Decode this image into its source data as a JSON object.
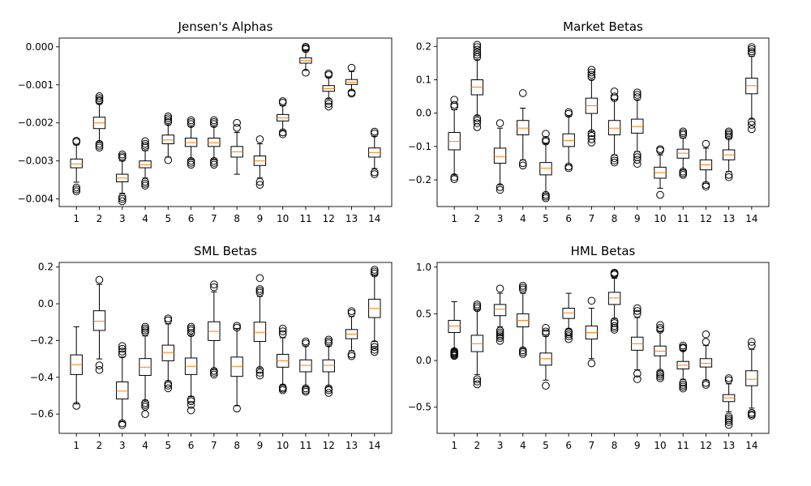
{
  "chart_data": [
    {
      "type": "box",
      "title": "Jensen's Alphas",
      "categories": [
        "1",
        "2",
        "3",
        "4",
        "5",
        "6",
        "7",
        "8",
        "9",
        "10",
        "11",
        "12",
        "13",
        "14"
      ],
      "ylim": [
        -0.0042,
        0.00023
      ],
      "yticks": [
        -0.004,
        -0.003,
        -0.002,
        -0.001,
        0.0
      ],
      "ytick_labels": [
        "−0.004",
        "−0.003",
        "−0.002",
        "−0.001",
        "0.000"
      ],
      "boxes": [
        {
          "q1": -0.00318,
          "median": -0.00308,
          "q3": -0.00295,
          "whislo": -0.00356,
          "whishi": -0.00258,
          "fliers": [
            -0.00247,
            -0.0025,
            -0.0037,
            -0.00375,
            -0.0038
          ]
        },
        {
          "q1": -0.00215,
          "median": -0.002,
          "q3": -0.00185,
          "whislo": -0.0025,
          "whishi": -0.0015,
          "fliers": [
            -0.0013,
            -0.00135,
            -0.0014,
            -0.00143,
            -0.00255,
            -0.0026,
            -0.00265
          ]
        },
        {
          "q1": -0.00355,
          "median": -0.00345,
          "q3": -0.00335,
          "whislo": -0.00385,
          "whishi": -0.003,
          "fliers": [
            -0.00283,
            -0.00288,
            -0.00292,
            -0.00395,
            -0.004,
            -0.00406
          ]
        },
        {
          "q1": -0.00318,
          "median": -0.0031,
          "q3": -0.003,
          "whislo": -0.00345,
          "whishi": -0.00273,
          "fliers": [
            -0.00248,
            -0.00255,
            -0.0026,
            -0.00265,
            -0.00355,
            -0.0036,
            -0.00365
          ]
        },
        {
          "q1": -0.00255,
          "median": -0.00245,
          "q3": -0.00232,
          "whislo": -0.0029,
          "whishi": -0.00205,
          "fliers": [
            -0.00183,
            -0.00188,
            -0.00193,
            -0.00198,
            -0.00298
          ]
        },
        {
          "q1": -0.00262,
          "median": -0.00252,
          "q3": -0.0024,
          "whislo": -0.00295,
          "whishi": -0.0021,
          "fliers": [
            -0.00193,
            -0.00198,
            -0.00203,
            -0.003,
            -0.00305,
            -0.0031
          ]
        },
        {
          "q1": -0.00262,
          "median": -0.00252,
          "q3": -0.0024,
          "whislo": -0.00295,
          "whishi": -0.0021,
          "fliers": [
            -0.00193,
            -0.00198,
            -0.00203,
            -0.003,
            -0.00305,
            -0.0031
          ]
        },
        {
          "q1": -0.0029,
          "median": -0.00276,
          "q3": -0.00262,
          "whislo": -0.00335,
          "whishi": -0.00225,
          "fliers": [
            -0.002,
            -0.00213
          ]
        },
        {
          "q1": -0.00312,
          "median": -0.003,
          "q3": -0.00287,
          "whislo": -0.00345,
          "whishi": -0.00255,
          "fliers": [
            -0.00243,
            -0.00355,
            -0.00363
          ]
        },
        {
          "q1": -0.00195,
          "median": -0.00187,
          "q3": -0.00178,
          "whislo": -0.0022,
          "whishi": -0.00155,
          "fliers": [
            -0.00143,
            -0.00147,
            -0.00225,
            -0.0023
          ]
        },
        {
          "q1": -0.00043,
          "median": -0.00036,
          "q3": -0.00029,
          "whislo": -0.00062,
          "whishi": -8e-05,
          "fliers": [
            0.0,
            -3e-05,
            -6e-05,
            -0.00068
          ]
        },
        {
          "q1": -0.00117,
          "median": -0.0011,
          "q3": -0.00102,
          "whislo": -0.00137,
          "whishi": -0.0008,
          "fliers": [
            -0.0007,
            -0.00074,
            -0.00143,
            -0.0015,
            -0.00157
          ]
        },
        {
          "q1": -0.00099,
          "median": -0.00093,
          "q3": -0.00086,
          "whislo": -0.00115,
          "whishi": -0.00065,
          "fliers": [
            -0.00055,
            -0.0012,
            -0.00123
          ]
        },
        {
          "q1": -0.0029,
          "median": -0.00278,
          "q3": -0.00266,
          "whislo": -0.0032,
          "whishi": -0.00235,
          "fliers": [
            -0.00223,
            -0.00228,
            -0.0033,
            -0.00335
          ]
        }
      ]
    },
    {
      "type": "box",
      "title": "Market Betas",
      "categories": [
        "1",
        "2",
        "3",
        "4",
        "5",
        "6",
        "7",
        "8",
        "9",
        "10",
        "11",
        "12",
        "13",
        "14"
      ],
      "ylim": [
        -0.28,
        0.225
      ],
      "yticks": [
        -0.2,
        -0.1,
        0.0,
        0.1,
        0.2
      ],
      "ytick_labels": [
        "−0.2",
        "−0.1",
        "0.0",
        "0.1",
        "0.2"
      ],
      "boxes": [
        {
          "q1": -0.11,
          "median": -0.085,
          "q3": -0.058,
          "whislo": -0.185,
          "whishi": 0.01,
          "fliers": [
            0.04,
            0.025,
            0.02,
            -0.192,
            -0.198
          ]
        },
        {
          "q1": 0.055,
          "median": 0.078,
          "q3": 0.1,
          "whislo": -0.008,
          "whishi": 0.16,
          "fliers": [
            0.205,
            0.198,
            0.19,
            0.182,
            0.175,
            0.168,
            -0.015,
            -0.022,
            -0.03,
            -0.042
          ]
        },
        {
          "q1": -0.15,
          "median": -0.13,
          "q3": -0.105,
          "whislo": -0.215,
          "whishi": -0.045,
          "fliers": [
            -0.03,
            -0.222,
            -0.23
          ]
        },
        {
          "q1": -0.065,
          "median": -0.045,
          "q3": -0.022,
          "whislo": -0.14,
          "whishi": 0.015,
          "fliers": [
            0.06,
            -0.15,
            -0.157
          ]
        },
        {
          "q1": -0.185,
          "median": -0.165,
          "q3": -0.148,
          "whislo": -0.24,
          "whishi": -0.092,
          "fliers": [
            -0.062,
            -0.08,
            -0.085,
            -0.245,
            -0.25,
            -0.255
          ]
        },
        {
          "q1": -0.1,
          "median": -0.082,
          "q3": -0.062,
          "whislo": -0.155,
          "whishi": -0.01,
          "fliers": [
            0.003,
            -0.002,
            -0.16,
            -0.165
          ]
        },
        {
          "q1": -0.001,
          "median": 0.022,
          "q3": 0.045,
          "whislo": -0.055,
          "whishi": 0.1,
          "fliers": [
            0.13,
            0.122,
            0.115,
            0.108,
            -0.06,
            -0.068,
            -0.078,
            -0.088
          ]
        },
        {
          "q1": -0.065,
          "median": -0.045,
          "q3": -0.022,
          "whislo": -0.125,
          "whishi": 0.04,
          "fliers": [
            0.065,
            0.05,
            0.045,
            -0.135,
            -0.142,
            -0.148
          ]
        },
        {
          "q1": -0.06,
          "median": -0.04,
          "q3": -0.018,
          "whislo": -0.115,
          "whishi": 0.04,
          "fliers": [
            0.062,
            0.055,
            0.048,
            -0.125,
            -0.132,
            -0.14,
            -0.152
          ]
        },
        {
          "q1": -0.195,
          "median": -0.178,
          "q3": -0.162,
          "whislo": -0.225,
          "whishi": -0.125,
          "fliers": [
            -0.108,
            -0.112,
            -0.245
          ]
        },
        {
          "q1": -0.135,
          "median": -0.12,
          "q3": -0.108,
          "whislo": -0.17,
          "whishi": -0.075,
          "fliers": [
            -0.055,
            -0.06,
            -0.065,
            -0.175,
            -0.18,
            -0.185
          ]
        },
        {
          "q1": -0.17,
          "median": -0.155,
          "q3": -0.14,
          "whislo": -0.21,
          "whishi": -0.105,
          "fliers": [
            -0.092,
            -0.215,
            -0.22
          ]
        },
        {
          "q1": -0.14,
          "median": -0.125,
          "q3": -0.11,
          "whislo": -0.175,
          "whishi": -0.075,
          "fliers": [
            -0.055,
            -0.06,
            -0.065,
            -0.07,
            -0.185,
            -0.192
          ]
        },
        {
          "q1": 0.058,
          "median": 0.082,
          "q3": 0.105,
          "whislo": -0.018,
          "whishi": 0.17,
          "fliers": [
            0.198,
            0.192,
            0.185,
            0.18,
            -0.025,
            -0.035,
            -0.048
          ]
        }
      ]
    },
    {
      "type": "box",
      "title": "SML Betas",
      "categories": [
        "1",
        "2",
        "3",
        "4",
        "5",
        "6",
        "7",
        "8",
        "9",
        "10",
        "11",
        "12",
        "13",
        "14"
      ],
      "ylim": [
        -0.705,
        0.225
      ],
      "yticks": [
        -0.6,
        -0.4,
        -0.2,
        0.0,
        0.2
      ],
      "ytick_labels": [
        "−0.6",
        "−0.4",
        "−0.2",
        "0.0",
        "0.2"
      ],
      "boxes": [
        {
          "q1": -0.385,
          "median": -0.33,
          "q3": -0.278,
          "whislo": -0.545,
          "whishi": -0.125,
          "fliers": [
            -0.555
          ]
        },
        {
          "q1": -0.145,
          "median": -0.095,
          "q3": -0.038,
          "whislo": -0.3,
          "whishi": 0.105,
          "fliers": [
            0.13,
            -0.335,
            -0.36
          ]
        },
        {
          "q1": -0.518,
          "median": -0.475,
          "q3": -0.425,
          "whislo": -0.64,
          "whishi": -0.29,
          "fliers": [
            -0.23,
            -0.245,
            -0.26,
            -0.275,
            -0.65,
            -0.66
          ]
        },
        {
          "q1": -0.39,
          "median": -0.345,
          "q3": -0.298,
          "whislo": -0.525,
          "whishi": -0.175,
          "fliers": [
            -0.125,
            -0.135,
            -0.145,
            -0.155,
            -0.54,
            -0.55,
            -0.56,
            -0.6
          ]
        },
        {
          "q1": -0.31,
          "median": -0.265,
          "q3": -0.225,
          "whislo": -0.42,
          "whishi": -0.11,
          "fliers": [
            -0.08,
            -0.09,
            -0.435,
            -0.445,
            -0.46
          ]
        },
        {
          "q1": -0.385,
          "median": -0.34,
          "q3": -0.295,
          "whislo": -0.505,
          "whishi": -0.17,
          "fliers": [
            -0.125,
            -0.135,
            -0.145,
            -0.16,
            -0.52,
            -0.53,
            -0.55,
            -0.58
          ]
        },
        {
          "q1": -0.2,
          "median": -0.15,
          "q3": -0.098,
          "whislo": -0.355,
          "whishi": 0.065,
          "fliers": [
            0.105,
            0.09,
            -0.365,
            -0.375,
            -0.385
          ]
        },
        {
          "q1": -0.395,
          "median": -0.34,
          "q3": -0.29,
          "whislo": -0.555,
          "whishi": -0.135,
          "fliers": [
            -0.12,
            -0.13,
            -0.57
          ]
        },
        {
          "q1": -0.205,
          "median": -0.155,
          "q3": -0.1,
          "whislo": -0.35,
          "whishi": 0.04,
          "fliers": [
            0.14,
            0.08,
            0.07,
            0.06,
            -0.36,
            -0.375,
            -0.39
          ]
        },
        {
          "q1": -0.345,
          "median": -0.31,
          "q3": -0.275,
          "whislo": -0.44,
          "whishi": -0.185,
          "fliers": [
            -0.135,
            -0.15,
            -0.165,
            -0.455,
            -0.462,
            -0.47
          ]
        },
        {
          "q1": -0.37,
          "median": -0.335,
          "q3": -0.305,
          "whislo": -0.45,
          "whishi": -0.23,
          "fliers": [
            -0.205,
            -0.215,
            -0.46,
            -0.47,
            -0.478
          ]
        },
        {
          "q1": -0.37,
          "median": -0.335,
          "q3": -0.305,
          "whislo": -0.45,
          "whishi": -0.23,
          "fliers": [
            -0.195,
            -0.205,
            -0.215,
            -0.46,
            -0.47,
            -0.485
          ]
        },
        {
          "q1": -0.19,
          "median": -0.165,
          "q3": -0.14,
          "whislo": -0.255,
          "whishi": -0.07,
          "fliers": [
            -0.04,
            -0.05,
            -0.275,
            -0.285
          ]
        },
        {
          "q1": -0.075,
          "median": -0.025,
          "q3": 0.025,
          "whislo": -0.205,
          "whishi": 0.155,
          "fliers": [
            0.185,
            0.175,
            0.165,
            -0.22,
            -0.235,
            -0.25,
            -0.262
          ]
        }
      ]
    },
    {
      "type": "box",
      "title": "HML Betas",
      "categories": [
        "1",
        "2",
        "3",
        "4",
        "5",
        "6",
        "7",
        "8",
        "9",
        "10",
        "11",
        "12",
        "13",
        "14"
      ],
      "ylim": [
        -0.78,
        1.05
      ],
      "yticks": [
        -0.5,
        0.0,
        0.5,
        1.0
      ],
      "ytick_labels": [
        "−0.5",
        "0.0",
        "0.5",
        "1.0"
      ],
      "boxes": [
        {
          "q1": 0.3,
          "median": 0.37,
          "q3": 0.43,
          "whislo": 0.115,
          "whishi": 0.63,
          "fliers": [
            0.05,
            0.06,
            0.07,
            0.08,
            0.09,
            0.1
          ]
        },
        {
          "q1": 0.095,
          "median": 0.18,
          "q3": 0.27,
          "whislo": -0.15,
          "whishi": 0.54,
          "fliers": [
            0.6,
            0.58,
            0.56,
            -0.2,
            -0.225,
            -0.255
          ]
        },
        {
          "q1": 0.48,
          "median": 0.55,
          "q3": 0.6,
          "whislo": 0.36,
          "whishi": 0.72,
          "fliers": [
            0.77,
            0.21,
            0.24,
            0.26,
            0.28,
            0.3,
            0.32
          ]
        },
        {
          "q1": 0.36,
          "median": 0.43,
          "q3": 0.5,
          "whislo": 0.13,
          "whishi": 0.72,
          "fliers": [
            0.8,
            0.78,
            0.76,
            0.07,
            0.09,
            0.11
          ]
        },
        {
          "q1": -0.05,
          "median": 0.02,
          "q3": 0.08,
          "whislo": -0.21,
          "whishi": 0.26,
          "fliers": [
            0.35,
            0.31,
            0.29,
            -0.27
          ]
        },
        {
          "q1": 0.45,
          "median": 0.51,
          "q3": 0.56,
          "whislo": 0.34,
          "whishi": 0.72,
          "fliers": [
            0.23,
            0.26,
            0.28,
            0.3,
            0.31
          ]
        },
        {
          "q1": 0.23,
          "median": 0.3,
          "q3": 0.37,
          "whislo": 0.02,
          "whishi": 0.56,
          "fliers": [
            0.64,
            -0.03
          ]
        },
        {
          "q1": 0.6,
          "median": 0.67,
          "q3": 0.73,
          "whislo": 0.45,
          "whishi": 0.88,
          "fliers": [
            0.94,
            0.93,
            0.92,
            0.33,
            0.35,
            0.37,
            0.4,
            0.42
          ]
        },
        {
          "q1": 0.11,
          "median": 0.18,
          "q3": 0.25,
          "whislo": -0.1,
          "whishi": 0.46,
          "fliers": [
            0.56,
            0.53,
            0.5,
            -0.14,
            -0.2
          ]
        },
        {
          "q1": 0.05,
          "median": 0.1,
          "q3": 0.155,
          "whislo": -0.11,
          "whishi": 0.31,
          "fliers": [
            0.38,
            0.35,
            0.33,
            -0.13,
            -0.15,
            -0.17,
            -0.19
          ]
        },
        {
          "q1": -0.09,
          "median": -0.05,
          "q3": -0.01,
          "whislo": -0.2,
          "whishi": 0.11,
          "fliers": [
            0.16,
            0.14,
            0.13,
            -0.24,
            -0.26,
            -0.28,
            -0.3
          ]
        },
        {
          "q1": -0.07,
          "median": -0.03,
          "q3": 0.02,
          "whislo": -0.21,
          "whishi": 0.16,
          "fliers": [
            0.28,
            0.2,
            -0.24,
            -0.26
          ]
        },
        {
          "q1": -0.44,
          "median": -0.4,
          "q3": -0.365,
          "whislo": -0.55,
          "whishi": -0.25,
          "fliers": [
            -0.19,
            -0.21,
            -0.6,
            -0.62,
            -0.64,
            -0.66,
            -0.69
          ]
        },
        {
          "q1": -0.27,
          "median": -0.2,
          "q3": -0.11,
          "whislo": -0.51,
          "whishi": 0.12,
          "fliers": [
            0.2,
            0.16,
            -0.56,
            -0.575,
            -0.59
          ]
        }
      ]
    }
  ]
}
